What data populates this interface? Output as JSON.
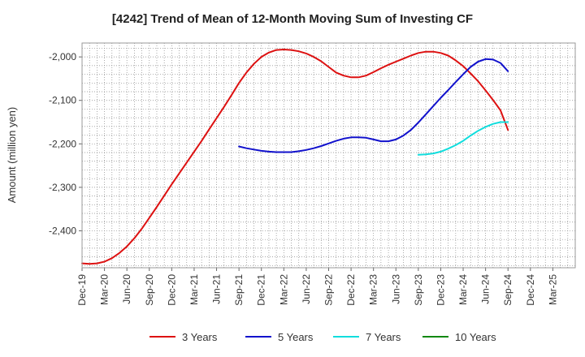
{
  "chart_data": {
    "type": "line",
    "title": "[4242]  Trend of Mean of 12-Month Moving Sum of Investing CF",
    "ylabel": "Amount (million yen)",
    "xlabel": "",
    "x_ticks": [
      "Dec-19",
      "Mar-20",
      "Jun-20",
      "Sep-20",
      "Dec-20",
      "Mar-21",
      "Jun-21",
      "Sep-21",
      "Dec-21",
      "Mar-22",
      "Jun-22",
      "Sep-22",
      "Dec-22",
      "Mar-23",
      "Jun-23",
      "Sep-23",
      "Dec-23",
      "Mar-24",
      "Jun-24",
      "Sep-24",
      "Dec-24",
      "Mar-25"
    ],
    "y_ticks": [
      -2000,
      -2100,
      -2200,
      -2300,
      -2400
    ],
    "y_tick_labels": [
      "-2,000",
      "-2,100",
      "-2,200",
      "-2,300",
      "-2,400"
    ],
    "ylim": [
      -2485,
      -1968
    ],
    "grid": true,
    "legend_position": "bottom",
    "series": [
      {
        "name": "3 Years",
        "color": "#dd1111",
        "x": [
          "2019-12",
          "2020-01",
          "2020-02",
          "2020-03",
          "2020-04",
          "2020-05",
          "2020-06",
          "2020-07",
          "2020-08",
          "2020-09",
          "2020-10",
          "2020-11",
          "2020-12",
          "2021-01",
          "2021-02",
          "2021-03",
          "2021-04",
          "2021-05",
          "2021-06",
          "2021-07",
          "2021-08",
          "2021-09",
          "2021-10",
          "2021-11",
          "2021-12",
          "2022-01",
          "2022-02",
          "2022-03",
          "2022-04",
          "2022-05",
          "2022-06",
          "2022-07",
          "2022-08",
          "2022-09",
          "2022-10",
          "2022-11",
          "2022-12",
          "2023-01",
          "2023-02",
          "2023-03",
          "2023-04",
          "2023-05",
          "2023-06",
          "2023-07",
          "2023-08",
          "2023-09",
          "2023-10",
          "2023-11",
          "2023-12",
          "2024-01",
          "2024-02",
          "2024-03",
          "2024-04",
          "2024-05",
          "2024-06",
          "2024-07",
          "2024-08",
          "2024-09"
        ],
        "values": [
          -2475,
          -2476,
          -2475,
          -2471,
          -2463,
          -2451,
          -2436,
          -2417,
          -2395,
          -2370,
          -2345,
          -2319,
          -2293,
          -2268,
          -2243,
          -2218,
          -2193,
          -2167,
          -2141,
          -2115,
          -2088,
          -2060,
          -2036,
          -2016,
          -2000,
          -1990,
          -1984,
          -1983,
          -1984,
          -1987,
          -1992,
          -2000,
          -2010,
          -2023,
          -2036,
          -2043,
          -2047,
          -2047,
          -2043,
          -2035,
          -2026,
          -2018,
          -2011,
          -2004,
          -1997,
          -1991,
          -1988,
          -1988,
          -1991,
          -1997,
          -2008,
          -2021,
          -2038,
          -2056,
          -2077,
          -2099,
          -2123,
          -2168
        ]
      },
      {
        "name": "5 Years",
        "color": "#1111cc",
        "x": [
          "2021-09",
          "2021-10",
          "2021-11",
          "2021-12",
          "2022-01",
          "2022-02",
          "2022-03",
          "2022-04",
          "2022-05",
          "2022-06",
          "2022-07",
          "2022-08",
          "2022-09",
          "2022-10",
          "2022-11",
          "2022-12",
          "2023-01",
          "2023-02",
          "2023-03",
          "2023-04",
          "2023-05",
          "2023-06",
          "2023-07",
          "2023-08",
          "2023-09",
          "2023-10",
          "2023-11",
          "2023-12",
          "2024-01",
          "2024-02",
          "2024-03",
          "2024-04",
          "2024-05",
          "2024-06",
          "2024-07",
          "2024-08",
          "2024-09"
        ],
        "values": [
          -2206,
          -2210,
          -2213,
          -2216,
          -2218,
          -2219,
          -2219,
          -2219,
          -2217,
          -2214,
          -2210,
          -2205,
          -2199,
          -2193,
          -2188,
          -2185,
          -2185,
          -2186,
          -2190,
          -2194,
          -2194,
          -2190,
          -2181,
          -2168,
          -2151,
          -2132,
          -2113,
          -2094,
          -2076,
          -2058,
          -2040,
          -2023,
          -2011,
          -2005,
          -2006,
          -2014,
          -2033
        ]
      },
      {
        "name": "7 Years",
        "color": "#11dddd",
        "x": [
          "2023-09",
          "2023-10",
          "2023-11",
          "2023-12",
          "2024-01",
          "2024-02",
          "2024-03",
          "2024-04",
          "2024-05",
          "2024-06",
          "2024-07",
          "2024-08",
          "2024-09"
        ],
        "values": [
          -2225,
          -2224,
          -2222,
          -2218,
          -2211,
          -2203,
          -2193,
          -2181,
          -2170,
          -2161,
          -2154,
          -2150,
          -2150
        ]
      },
      {
        "name": "10 Years",
        "color": "#118811",
        "x": [],
        "values": []
      }
    ]
  }
}
